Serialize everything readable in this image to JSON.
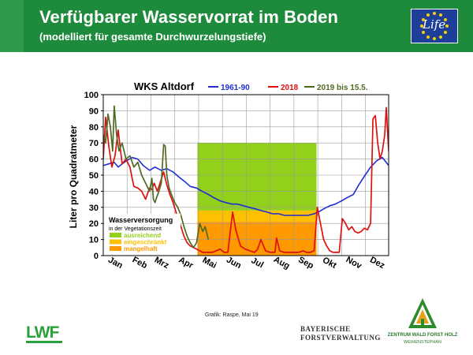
{
  "header": {
    "title": "Verfügbarer Wasservorrat im Boden",
    "subtitle": "(modelliert für gesamte Durchwurzelungstiefe)",
    "eu_logo_text": "Life"
  },
  "credit": "Grafik: Raspe, Mai 19",
  "logos": {
    "lwf": "LWF",
    "forstverwaltung_line1": "BAYERISCHE",
    "forstverwaltung_line2": "FORSTVERWALTUNG",
    "zentrum_line1": "ZENTRUM WALD FORST HOLZ",
    "zentrum_line2": "WEIHENSTEPHAN"
  },
  "colors": {
    "header_bg": "#1e8a3c",
    "s1961": "#1f2fd1",
    "s2018": "#e01010",
    "s2019": "#4f6a22",
    "ausreichend": "#92d01c",
    "eingeschraenkt": "#ffc000",
    "mangelhaft": "#ff9900"
  },
  "chart_data": {
    "type": "line",
    "title": "WKS Altdorf",
    "ylabel": "Liter pro Quadratmeter",
    "xlabel": "",
    "ylim": [
      0,
      100
    ],
    "yticks": [
      0,
      10,
      20,
      30,
      40,
      50,
      60,
      70,
      80,
      90,
      100
    ],
    "xlim": [
      1,
      365
    ],
    "month_labels": [
      "Jan",
      "Feb",
      "Mrz",
      "Apr",
      "Mai",
      "Jun",
      "Jul",
      "Aug",
      "Sep",
      "Okt",
      "Nov",
      "Dez"
    ],
    "month_label_days": [
      15,
      46,
      74,
      105,
      135,
      166,
      196,
      227,
      258,
      288,
      319,
      349
    ],
    "grid": true,
    "legend_placement": "top",
    "bands": {
      "title": "Wasserversorgung",
      "subtitle": "in der Vegetationszeit",
      "x_range": [
        121,
        273
      ],
      "items": [
        {
          "label": "ausreichend",
          "range": [
            28,
            70
          ]
        },
        {
          "label": "eingeschränkt",
          "range": [
            21,
            28
          ]
        },
        {
          "label": "mangelhaft",
          "range": [
            0,
            21
          ]
        }
      ]
    },
    "series": [
      {
        "name": "1961-90",
        "x": [
          1,
          8,
          15,
          20,
          25,
          31,
          38,
          45,
          52,
          60,
          67,
          75,
          82,
          90,
          97,
          105,
          112,
          120,
          127,
          135,
          142,
          150,
          157,
          165,
          172,
          180,
          187,
          195,
          202,
          210,
          217,
          225,
          232,
          240,
          247,
          255,
          262,
          270,
          275,
          282,
          290,
          297,
          305,
          312,
          320,
          327,
          335,
          342,
          350,
          357,
          365
        ],
        "y": [
          56,
          57,
          58,
          55,
          57,
          59,
          61,
          60,
          56,
          53,
          55,
          53,
          54,
          52,
          49,
          46,
          43,
          42,
          40,
          38,
          36,
          34,
          33,
          32,
          32,
          31,
          30,
          29,
          28,
          27,
          26,
          26,
          25,
          25,
          25,
          25,
          25,
          26,
          27,
          29,
          31,
          32,
          34,
          36,
          38,
          44,
          50,
          55,
          59,
          61,
          56
        ]
      },
      {
        "name": "2018",
        "x": [
          1,
          4,
          8,
          12,
          16,
          20,
          25,
          30,
          35,
          40,
          45,
          50,
          55,
          60,
          63,
          66,
          70,
          74,
          78,
          82,
          86,
          90,
          95,
          100,
          104,
          108,
          112,
          116,
          120,
          124,
          128,
          132,
          136,
          140,
          145,
          150,
          155,
          160,
          163,
          166,
          170,
          176,
          182,
          188,
          194,
          198,
          202,
          208,
          214,
          220,
          222,
          226,
          232,
          240,
          250,
          256,
          260,
          265,
          270,
          274,
          278,
          282,
          286,
          290,
          294,
          298,
          302,
          306,
          310,
          314,
          318,
          322,
          326,
          330,
          334,
          338,
          342,
          345,
          348,
          351,
          354,
          357,
          360,
          362,
          365
        ],
        "y": [
          60,
          86,
          68,
          55,
          62,
          78,
          57,
          60,
          55,
          43,
          42,
          40,
          35,
          42,
          41,
          45,
          40,
          46,
          52,
          44,
          38,
          33,
          25,
          18,
          12,
          8,
          6,
          5,
          4,
          3,
          2,
          2,
          2,
          2,
          3,
          4,
          2,
          2,
          15,
          27,
          16,
          6,
          4,
          3,
          2,
          4,
          10,
          3,
          2,
          2,
          11,
          3,
          2,
          2,
          2,
          3,
          2,
          2,
          3,
          30,
          20,
          10,
          6,
          3,
          2,
          2,
          2,
          23,
          20,
          16,
          18,
          15,
          14,
          15,
          17,
          16,
          20,
          85,
          87,
          70,
          60,
          65,
          75,
          92,
          65
        ]
      },
      {
        "name": "2019 bis 15.5.",
        "x": [
          1,
          4,
          7,
          10,
          13,
          15,
          18,
          21,
          25,
          30,
          35,
          40,
          45,
          50,
          55,
          60,
          63,
          65,
          67,
          69,
          72,
          75,
          78,
          80,
          82,
          85,
          88,
          92,
          96,
          100,
          104,
          108,
          112,
          116,
          120,
          124,
          128,
          131,
          135
        ],
        "y": [
          75,
          70,
          88,
          80,
          65,
          93,
          75,
          65,
          70,
          60,
          62,
          55,
          58,
          50,
          45,
          40,
          48,
          35,
          33,
          36,
          40,
          45,
          69,
          68,
          50,
          42,
          38,
          33,
          30,
          25,
          18,
          12,
          8,
          5,
          8,
          20,
          15,
          18,
          10
        ]
      }
    ]
  }
}
